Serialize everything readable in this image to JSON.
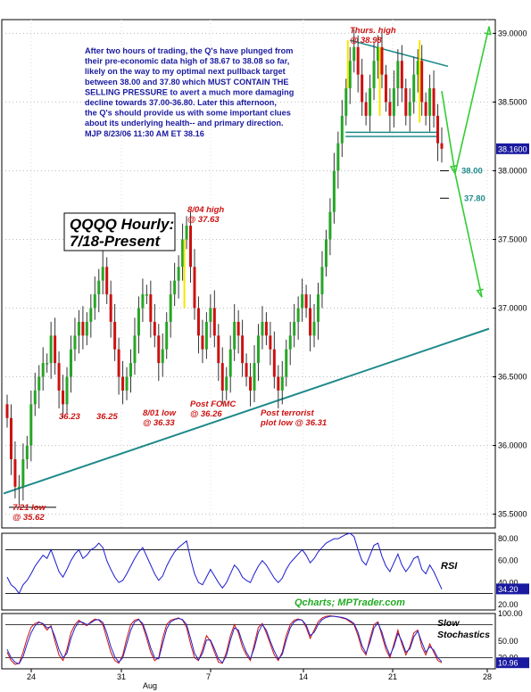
{
  "chart_data": [
    {
      "type": "candlestick",
      "title": "QQQQ Hourly:",
      "subtitle": "7/18-Present",
      "ylim": [
        35.4,
        39.1
      ],
      "y_ticks": [
        "39.0000",
        "38.5000",
        "38.0000",
        "37.5000",
        "37.0000",
        "36.5000",
        "36.0000",
        "35.5000"
      ],
      "y_tick_values": [
        39.0,
        38.5,
        38.0,
        37.5,
        37.0,
        36.5,
        36.0,
        35.5
      ],
      "last_price_label": "38.1600",
      "last_price": 38.16,
      "x_ticks": [
        "24",
        "31",
        "7",
        "14",
        "21",
        "28"
      ],
      "x_sublabel": "Aug",
      "commentary": [
        "After two hours of trading, the Q's have plunged from",
        "their pre-economic data high of 38.67 to 38.08 so far,",
        "likely on the way to my optimal next pullback target",
        "between 38.00 and 37.80 which MUST CONTAIN THE",
        "SELLING PRESSURE to avert a much more damaging",
        "decline towards 37.00-36.80. Later this afternoon,",
        "the Q's should provide us with some important clues",
        "about its underlying health-- and primary direction.",
        "MJP  8/23/06  11:30 AM ET  38.16"
      ],
      "annotations": [
        {
          "lines": [
            "Thurs. high",
            "@ 38.98"
          ]
        },
        {
          "lines": [
            "8/04 high",
            "@ 37.63"
          ]
        },
        {
          "lines": [
            "36.23"
          ]
        },
        {
          "lines": [
            "36.25"
          ]
        },
        {
          "lines": [
            "8/01 low",
            "@ 36.33"
          ]
        },
        {
          "lines": [
            "Post FOMC",
            "@ 36.26"
          ]
        },
        {
          "lines": [
            "Post terrorist",
            "plot low @ 36.31"
          ]
        },
        {
          "lines": [
            "7/21 low",
            "@ 35.62"
          ]
        }
      ],
      "target_labels": [
        "38.00",
        "37.80"
      ],
      "target_values": [
        38.0,
        37.8
      ],
      "closes": [
        36.2,
        35.9,
        35.7,
        35.7,
        35.9,
        36.0,
        36.3,
        36.4,
        36.5,
        36.6,
        36.6,
        36.8,
        36.6,
        36.4,
        36.3,
        36.5,
        36.7,
        36.8,
        36.9,
        36.8,
        36.9,
        37.0,
        37.1,
        37.2,
        37.3,
        37.1,
        36.9,
        36.7,
        36.5,
        36.4,
        36.5,
        36.6,
        36.8,
        37.0,
        37.1,
        37.1,
        36.9,
        36.8,
        36.6,
        36.7,
        36.9,
        37.1,
        37.2,
        37.3,
        37.5,
        37.6,
        37.3,
        37.0,
        36.8,
        36.7,
        36.9,
        37.0,
        36.8,
        36.6,
        36.4,
        36.5,
        36.7,
        36.9,
        36.8,
        36.6,
        36.5,
        36.4,
        36.6,
        36.8,
        36.9,
        36.8,
        36.7,
        36.5,
        36.4,
        36.5,
        36.7,
        36.8,
        36.9,
        37.0,
        37.1,
        37.0,
        36.8,
        36.9,
        37.1,
        37.3,
        37.5,
        37.7,
        38.0,
        38.2,
        38.4,
        38.6,
        38.8,
        38.9,
        38.7,
        38.5,
        38.4,
        38.6,
        38.8,
        38.9,
        38.7,
        38.5,
        38.4,
        38.6,
        38.8,
        38.6,
        38.4,
        38.5,
        38.7,
        38.8,
        38.5,
        38.4,
        38.6,
        38.4,
        38.2,
        38.16
      ],
      "resistance_line": {
        "from": [
          0,
          38.93
        ],
        "to": [
          1,
          38.78
        ]
      },
      "trend_line": {
        "from": [
          0,
          35.65
        ],
        "to": [
          1,
          36.85
        ]
      }
    },
    {
      "type": "line",
      "title": "RSI",
      "ylim": [
        15,
        85
      ],
      "y_ticks": [
        "80.00",
        "60.00",
        "40.00",
        "20.00"
      ],
      "y_tick_values": [
        80,
        60,
        40,
        20
      ],
      "last_value_label": "34.20",
      "reference_lines": [
        70,
        30
      ],
      "values": [
        45,
        38,
        35,
        30,
        38,
        42,
        48,
        55,
        60,
        65,
        62,
        70,
        60,
        50,
        45,
        52,
        60,
        66,
        70,
        62,
        65,
        70,
        72,
        76,
        72,
        60,
        52,
        45,
        40,
        42,
        48,
        55,
        62,
        68,
        72,
        64,
        56,
        48,
        42,
        46,
        55,
        62,
        68,
        72,
        75,
        78,
        62,
        48,
        40,
        38,
        45,
        52,
        46,
        40,
        35,
        40,
        48,
        56,
        52,
        45,
        42,
        40,
        48,
        55,
        60,
        56,
        50,
        44,
        40,
        44,
        52,
        58,
        62,
        66,
        70,
        65,
        58,
        62,
        68,
        72,
        76,
        78,
        80,
        80,
        82,
        84,
        85,
        82,
        70,
        60,
        56,
        65,
        74,
        76,
        64,
        55,
        50,
        58,
        66,
        56,
        50,
        55,
        62,
        64,
        52,
        48,
        56,
        50,
        42,
        34
      ]
    },
    {
      "type": "line",
      "title": "Slow Stochastics",
      "ylim": [
        0,
        100
      ],
      "y_ticks": [
        "100.00",
        "50.00",
        "20.00"
      ],
      "y_tick_values": [
        100,
        50,
        20
      ],
      "last_value_label": "10.96",
      "reference_lines": [
        80,
        20
      ],
      "series": [
        {
          "values": [
            30,
            15,
            8,
            10,
            30,
            55,
            75,
            82,
            85,
            80,
            70,
            78,
            50,
            25,
            15,
            35,
            65,
            80,
            88,
            82,
            78,
            85,
            90,
            88,
            80,
            55,
            30,
            15,
            10,
            25,
            55,
            80,
            88,
            90,
            78,
            55,
            30,
            15,
            20,
            55,
            80,
            88,
            90,
            92,
            88,
            75,
            45,
            20,
            15,
            35,
            60,
            50,
            30,
            12,
            10,
            30,
            60,
            80,
            65,
            40,
            25,
            15,
            45,
            75,
            82,
            65,
            45,
            25,
            15,
            30,
            60,
            80,
            88,
            90,
            88,
            75,
            55,
            70,
            85,
            92,
            95,
            96,
            95,
            94,
            92,
            90,
            85,
            80,
            60,
            35,
            25,
            55,
            80,
            85,
            60,
            35,
            20,
            45,
            70,
            45,
            25,
            40,
            65,
            70,
            40,
            25,
            45,
            30,
            15,
            11
          ]
        },
        {
          "values": [
            35,
            20,
            12,
            9,
            22,
            45,
            65,
            78,
            84,
            82,
            74,
            76,
            58,
            35,
            20,
            28,
            55,
            74,
            85,
            84,
            80,
            83,
            88,
            89,
            84,
            65,
            40,
            22,
            12,
            20,
            45,
            70,
            85,
            89,
            82,
            62,
            38,
            20,
            18,
            45,
            72,
            85,
            89,
            91,
            89,
            80,
            55,
            28,
            16,
            28,
            52,
            52,
            36,
            18,
            11,
            24,
            52,
            74,
            70,
            48,
            30,
            18,
            38,
            66,
            80,
            70,
            50,
            32,
            18,
            26,
            52,
            74,
            85,
            89,
            88,
            79,
            60,
            66,
            80,
            89,
            93,
            95,
            95,
            94,
            93,
            91,
            87,
            82,
            66,
            42,
            28,
            48,
            74,
            83,
            66,
            42,
            24,
            40,
            64,
            50,
            30,
            36,
            58,
            68,
            48,
            30,
            40,
            34,
            20,
            13
          ]
        }
      ]
    }
  ],
  "watermark": "Qcharts; MPTrader.com",
  "colors": {
    "up": "#26a626",
    "down": "#cc1111",
    "accent": "#f7e600",
    "trend": "#1f8a8a",
    "target": "#33cc33",
    "rsi": "#1a1ad0",
    "stoch1": "#cc1111",
    "stoch2": "#2222cc",
    "note": "#1a1aa0",
    "label_box": "#1a1aa0"
  }
}
